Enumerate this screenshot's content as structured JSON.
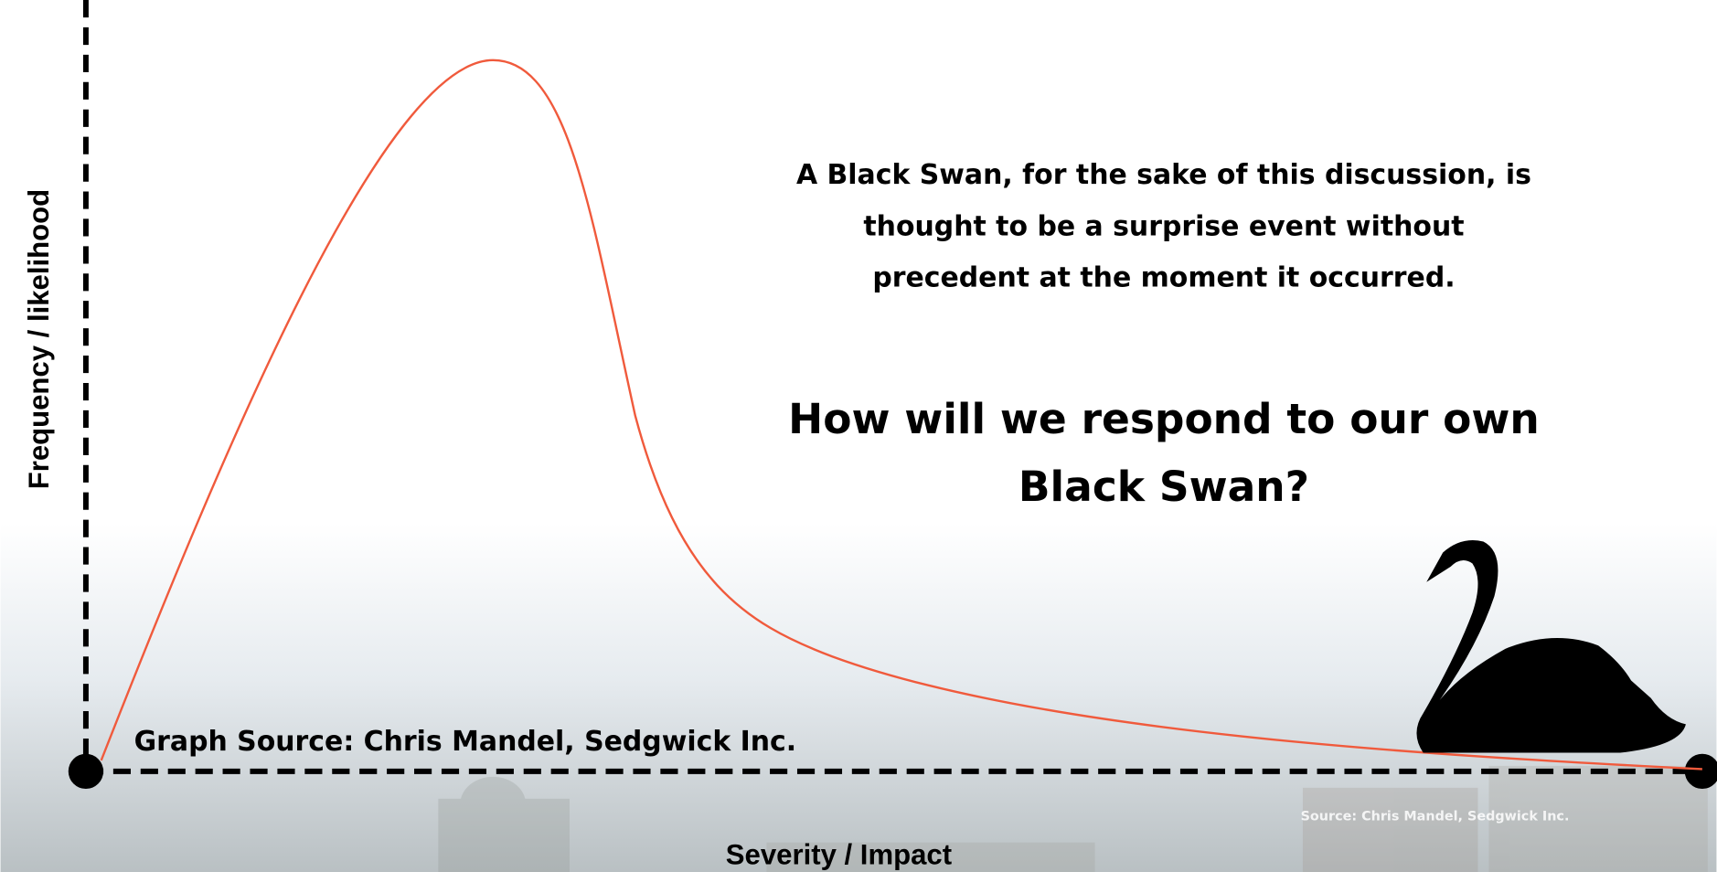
{
  "y_axis_label": "Frequency / likelihood",
  "x_axis_label": "Severity / Impact",
  "statement": [
    "A Black Swan, for the sake of this discussion, is",
    "thought to be a surprise event without",
    "precedent at the moment it occurred."
  ],
  "question": [
    "How will we respond to our own",
    "Black Swan?"
  ],
  "graph_source": "Graph Source: Chris Mandel, Sedgwick Inc.",
  "image_source": "Source: Chris Mandel, Sedgwick Inc."
}
